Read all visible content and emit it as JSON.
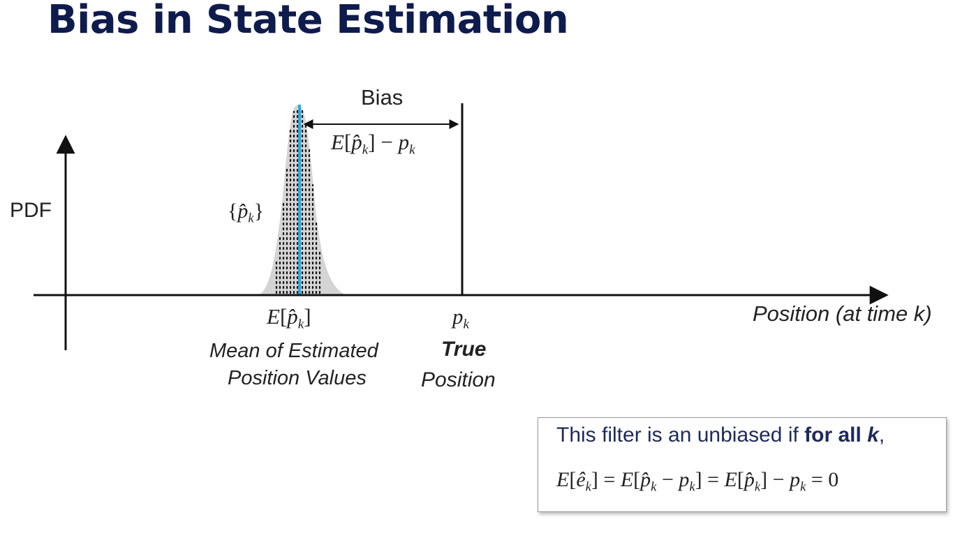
{
  "title": "Bias in State Estimation",
  "diagram": {
    "y_axis_label": "PDF",
    "x_axis_label": "Position (at time k)",
    "bias_label": "Bias",
    "bias_formula": "E[p̂k] − pk",
    "samples_label": "{p̂k}",
    "mean_symbol": "E[p̂k]",
    "mean_caption_line1": "Mean of Estimated",
    "mean_caption_line2": "Position Values",
    "true_symbol": "pk",
    "true_caption_bold": "True",
    "true_caption_line2": "Position",
    "colors": {
      "mean_line": "#2aa8e0",
      "pdf_fill": "#d4d4d4",
      "axes": "#111111"
    }
  },
  "note": {
    "text_prefix": "This filter is an unbiased if ",
    "text_bold": "for all ",
    "text_var": "k",
    "text_suffix": ",",
    "equation": "E[êk] = E[p̂k − pk] = E[p̂k] − pk = 0"
  }
}
